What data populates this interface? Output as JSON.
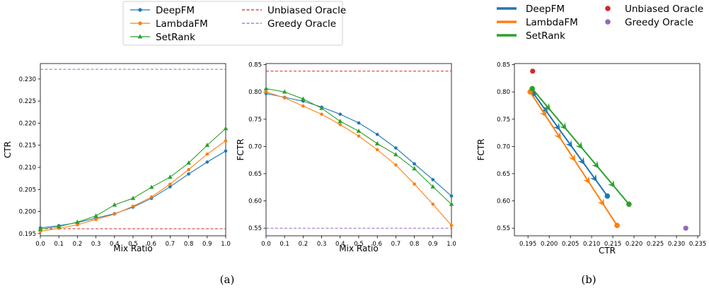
{
  "colors": {
    "deepfm": "#1f77b4",
    "lambdafm": "#ff7f0e",
    "setrank": "#2ca02c",
    "unbiased_oracle": "#d62728",
    "greedy_oracle": "#9467bd"
  },
  "legends": {
    "a": [
      {
        "label": "DeepFM",
        "series": "deepfm",
        "marker": "circle",
        "style": "solid"
      },
      {
        "label": "LambdaFM",
        "series": "lambdafm",
        "marker": "circle",
        "style": "solid"
      },
      {
        "label": "SetRank",
        "series": "setrank",
        "marker": "triangle",
        "style": "solid"
      },
      {
        "label": "Unbiased Oracle",
        "series": "unbiased_oracle",
        "marker": "none",
        "style": "dashed"
      },
      {
        "label": "Greedy Oracle",
        "series": "greedy_oracle",
        "marker": "none",
        "style": "dashed"
      }
    ],
    "b": [
      {
        "label": "DeepFM",
        "series": "deepfm",
        "marker": "thickline"
      },
      {
        "label": "LambdaFM",
        "series": "lambdafm",
        "marker": "thickline"
      },
      {
        "label": "SetRank",
        "series": "setrank",
        "marker": "thickline"
      },
      {
        "label": "Unbiased Oracle",
        "series": "unbiased_oracle",
        "marker": "dot"
      },
      {
        "label": "Greedy Oracle",
        "series": "greedy_oracle",
        "marker": "dot"
      }
    ]
  },
  "captions": {
    "a": "(a)",
    "b": "(b)"
  },
  "chart_data": [
    {
      "type": "line",
      "xlabel": "Mix Ratio",
      "ylabel": "CTR",
      "xlim": [
        0.0,
        1.0
      ],
      "ylim": [
        0.1945,
        0.2335
      ],
      "x_ticks": [
        0.0,
        0.1,
        0.2,
        0.3,
        0.4,
        0.5,
        0.6,
        0.7,
        0.8,
        0.9,
        1.0
      ],
      "y_ticks": [
        0.195,
        0.2,
        0.205,
        0.21,
        0.215,
        0.22,
        0.225,
        0.23
      ],
      "x_tick_labels": [
        "0.0",
        "0.1",
        "0.2",
        "0.3",
        "0.4",
        "0.5",
        "0.6",
        "0.7",
        "0.8",
        "0.9",
        "1.0"
      ],
      "y_tick_labels": [
        "0.195",
        "0.200",
        "0.205",
        "0.210",
        "0.215",
        "0.220",
        "0.225",
        "0.230"
      ],
      "x": [
        0.0,
        0.1,
        0.2,
        0.3,
        0.4,
        0.5,
        0.6,
        0.7,
        0.8,
        0.9,
        1.0
      ],
      "series": [
        {
          "name": "DeepFM",
          "key": "deepfm",
          "marker": "circle",
          "values": [
            0.1963,
            0.1968,
            0.1975,
            0.1985,
            0.1995,
            0.201,
            0.203,
            0.2056,
            0.2085,
            0.2112,
            0.2137
          ]
        },
        {
          "name": "LambdaFM",
          "key": "lambdafm",
          "marker": "circle",
          "values": [
            0.1955,
            0.1962,
            0.197,
            0.1982,
            0.1994,
            0.2012,
            0.2033,
            0.2062,
            0.2095,
            0.213,
            0.216
          ]
        },
        {
          "name": "SetRank",
          "key": "setrank",
          "marker": "triangle",
          "values": [
            0.196,
            0.1966,
            0.1976,
            0.199,
            0.2015,
            0.203,
            0.2055,
            0.2078,
            0.211,
            0.215,
            0.2188
          ]
        }
      ],
      "hlines": [
        {
          "name": "Unbiased Oracle",
          "key": "unbiased_oracle",
          "value": 0.1961
        },
        {
          "name": "Greedy Oracle",
          "key": "greedy_oracle",
          "value": 0.2322
        }
      ]
    },
    {
      "type": "line",
      "xlabel": "Mix Ratio",
      "ylabel": "FCTR",
      "xlim": [
        0.0,
        1.0
      ],
      "ylim": [
        0.536,
        0.852
      ],
      "x_ticks": [
        0.0,
        0.1,
        0.2,
        0.3,
        0.4,
        0.5,
        0.6,
        0.7,
        0.8,
        0.9,
        1.0
      ],
      "y_ticks": [
        0.55,
        0.6,
        0.65,
        0.7,
        0.75,
        0.8,
        0.85
      ],
      "x_tick_labels": [
        "0.0",
        "0.1",
        "0.2",
        "0.3",
        "0.4",
        "0.5",
        "0.6",
        "0.7",
        "0.8",
        "0.9",
        "1.0"
      ],
      "y_tick_labels": [
        "0.55",
        "0.60",
        "0.65",
        "0.70",
        "0.75",
        "0.80",
        "0.85"
      ],
      "x": [
        0.0,
        0.1,
        0.2,
        0.3,
        0.4,
        0.5,
        0.6,
        0.7,
        0.8,
        0.9,
        1.0
      ],
      "series": [
        {
          "name": "DeepFM",
          "key": "deepfm",
          "marker": "circle",
          "values": [
            0.797,
            0.79,
            0.783,
            0.772,
            0.759,
            0.743,
            0.722,
            0.697,
            0.668,
            0.639,
            0.609
          ]
        },
        {
          "name": "LambdaFM",
          "key": "lambdafm",
          "marker": "circle",
          "values": [
            0.8,
            0.789,
            0.774,
            0.759,
            0.74,
            0.719,
            0.694,
            0.666,
            0.631,
            0.594,
            0.555
          ]
        },
        {
          "name": "SetRank",
          "key": "setrank",
          "marker": "triangle",
          "values": [
            0.806,
            0.8,
            0.787,
            0.77,
            0.746,
            0.728,
            0.705,
            0.685,
            0.659,
            0.626,
            0.594
          ]
        }
      ],
      "hlines": [
        {
          "name": "Unbiased Oracle",
          "key": "unbiased_oracle",
          "value": 0.838
        },
        {
          "name": "Greedy Oracle",
          "key": "greedy_oracle",
          "value": 0.55
        }
      ]
    },
    {
      "type": "scatter",
      "xlabel": "CTR",
      "ylabel": "FCTR",
      "xlim": [
        0.1918,
        0.2355
      ],
      "ylim": [
        0.536,
        0.852
      ],
      "x_ticks": [
        0.195,
        0.2,
        0.205,
        0.21,
        0.215,
        0.22,
        0.225,
        0.23,
        0.235
      ],
      "y_ticks": [
        0.55,
        0.6,
        0.65,
        0.7,
        0.75,
        0.8,
        0.85
      ],
      "x_tick_labels": [
        "0.195",
        "0.200",
        "0.205",
        "0.210",
        "0.215",
        "0.220",
        "0.225",
        "0.230",
        "0.235"
      ],
      "y_tick_labels": [
        "0.55",
        "0.60",
        "0.65",
        "0.70",
        "0.75",
        "0.80",
        "0.85"
      ],
      "series": [
        {
          "name": "DeepFM",
          "key": "deepfm",
          "start": [
            0.1963,
            0.797
          ],
          "end": [
            0.2137,
            0.609
          ]
        },
        {
          "name": "LambdaFM",
          "key": "lambdafm",
          "start": [
            0.1955,
            0.8
          ],
          "end": [
            0.216,
            0.555
          ]
        },
        {
          "name": "SetRank",
          "key": "setrank",
          "start": [
            0.196,
            0.806
          ],
          "end": [
            0.2188,
            0.594
          ]
        }
      ],
      "points": [
        {
          "name": "Unbiased Oracle",
          "key": "unbiased_oracle",
          "x": 0.1961,
          "y": 0.838
        },
        {
          "name": "Greedy Oracle",
          "key": "greedy_oracle",
          "x": 0.2322,
          "y": 0.55
        }
      ]
    }
  ]
}
